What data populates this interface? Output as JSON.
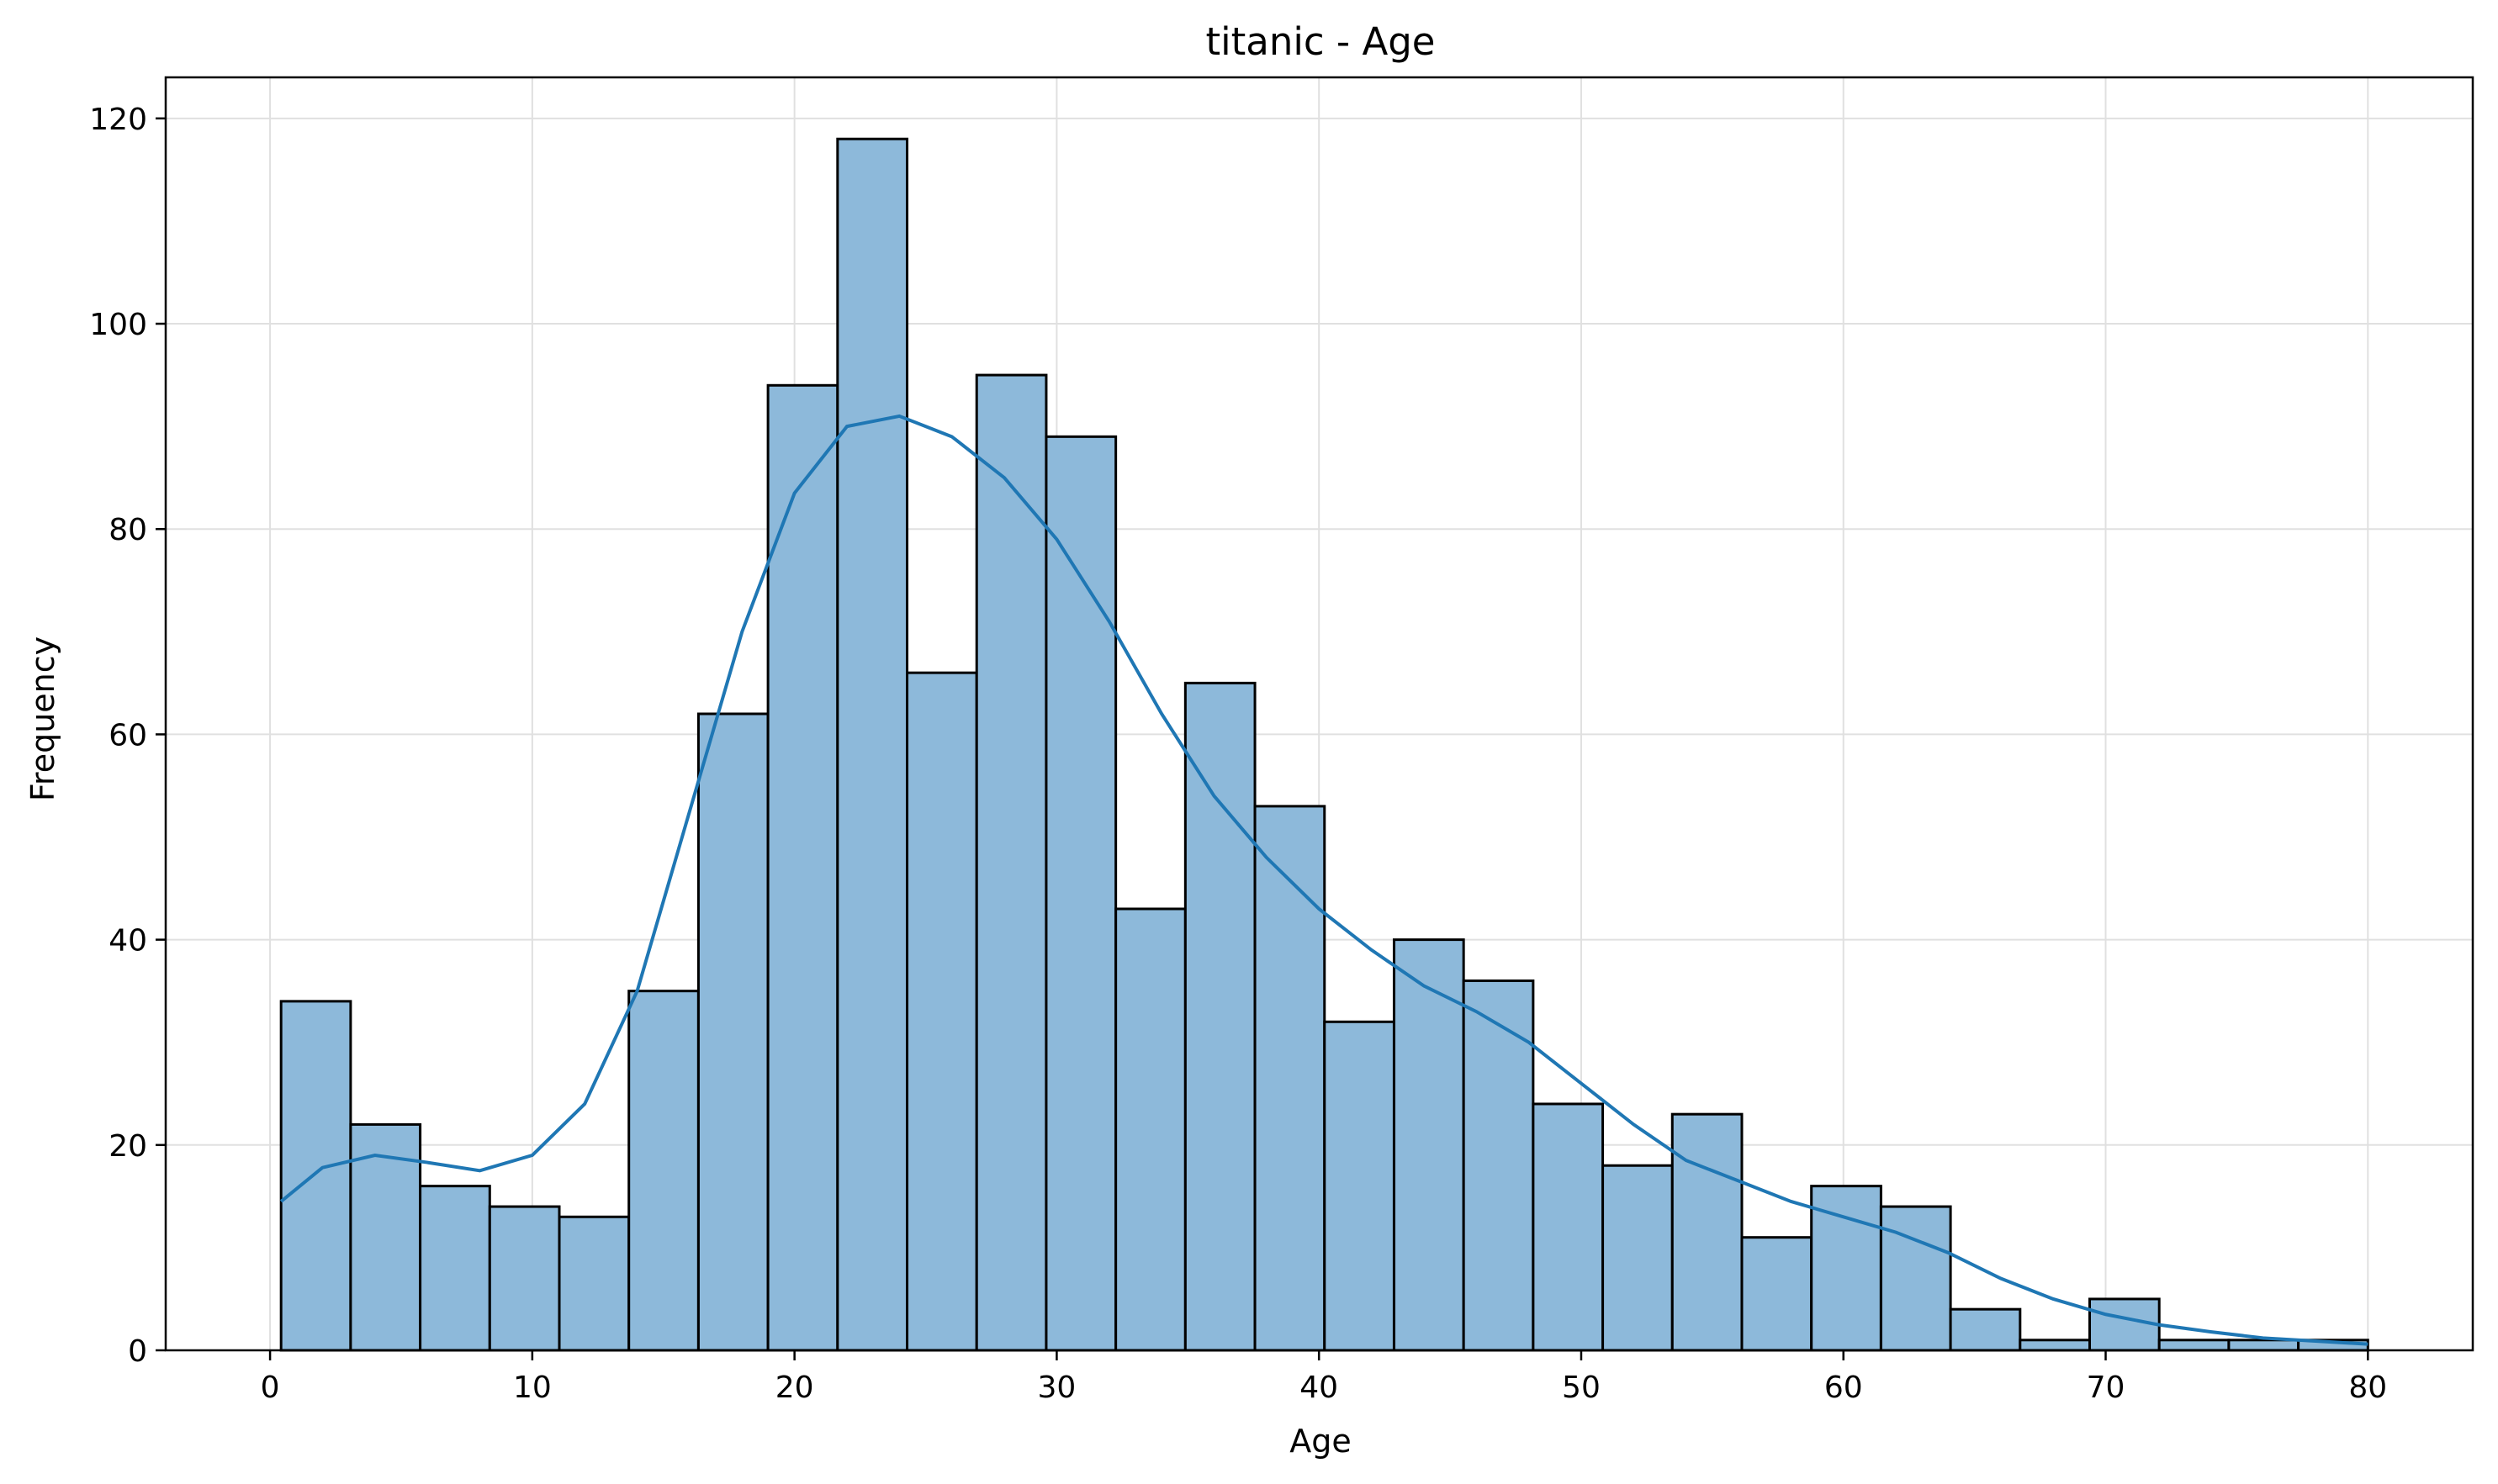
{
  "chart_data": {
    "type": "bar",
    "title": "titanic - Age",
    "xlabel": "Age",
    "ylabel": "Frequency",
    "xlim": [
      -3.98,
      84.0
    ],
    "ylim": [
      0,
      124
    ],
    "grid": true,
    "bin_start": 0.42,
    "bin_width": 2.6527,
    "x_ticks": [
      0,
      10,
      20,
      30,
      40,
      50,
      60,
      70,
      80
    ],
    "y_ticks": [
      0,
      20,
      40,
      60,
      80,
      100,
      120
    ],
    "values": [
      34,
      22,
      16,
      14,
      13,
      35,
      62,
      94,
      118,
      66,
      95,
      89,
      43,
      65,
      53,
      32,
      40,
      36,
      24,
      18,
      23,
      11,
      16,
      14,
      4,
      1,
      5,
      1,
      1,
      1
    ],
    "kde": {
      "x": [
        0.42,
        2,
        4,
        6,
        8,
        10,
        12,
        14,
        16,
        18,
        20,
        22,
        24,
        26,
        28,
        30,
        32,
        34,
        36,
        38,
        40,
        42,
        44,
        46,
        48,
        50,
        52,
        54,
        56,
        58,
        60,
        62,
        64,
        66,
        68,
        70,
        72,
        74,
        76,
        78,
        80
      ],
      "y": [
        14.5,
        17.8,
        19.0,
        18.3,
        17.5,
        19.0,
        24.0,
        35.0,
        52.5,
        70.0,
        83.5,
        90.0,
        91.0,
        89.0,
        85.0,
        79.0,
        71.0,
        62.0,
        54.0,
        48.0,
        43.0,
        39.0,
        35.5,
        33.0,
        30.0,
        26.0,
        22.0,
        18.5,
        16.5,
        14.5,
        13.0,
        11.5,
        9.5,
        7.0,
        5.0,
        3.5,
        2.5,
        1.8,
        1.2,
        0.9,
        0.6
      ]
    },
    "colors": {
      "bar_fill": "#8db9da",
      "bar_edge": "#000000",
      "kde_line": "#1f77b4",
      "grid": "#e0e0e0"
    }
  }
}
